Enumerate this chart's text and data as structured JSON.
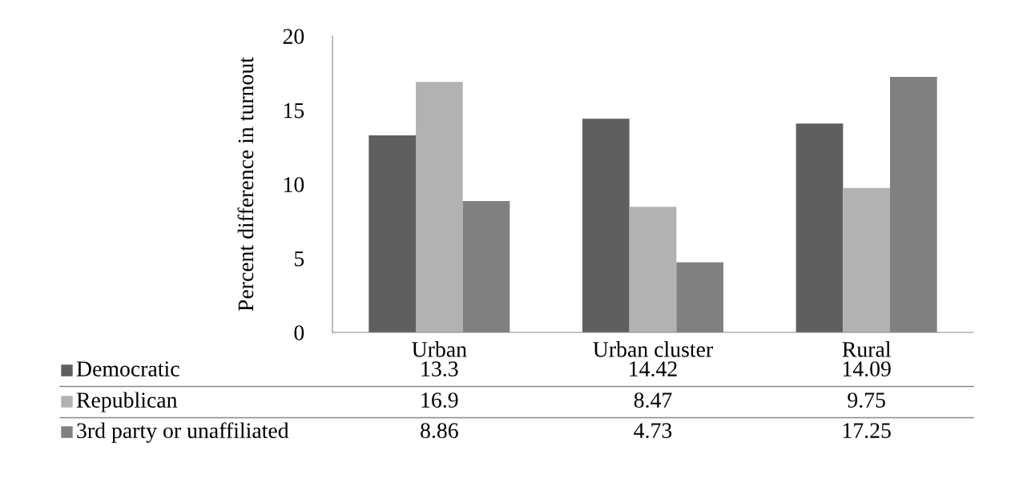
{
  "chart_data": {
    "type": "bar",
    "ylabel": "Percent difference in turnout",
    "categories": [
      "Urban",
      "Urban cluster",
      "Rural"
    ],
    "series": [
      {
        "name": "Democratic",
        "color": "#5f5f5f",
        "values": [
          13.3,
          14.42,
          14.09
        ]
      },
      {
        "name": "Republican",
        "color": "#b2b2b2",
        "values": [
          16.9,
          8.47,
          9.75
        ]
      },
      {
        "name": "3rd party or unaffiliated",
        "color": "#808080",
        "values": [
          8.86,
          4.73,
          17.25
        ]
      }
    ],
    "ylim": [
      0,
      20
    ],
    "yticks": [
      0,
      5,
      10,
      15,
      20
    ],
    "grid": false,
    "data_labels": true,
    "legend": "bottom left"
  }
}
